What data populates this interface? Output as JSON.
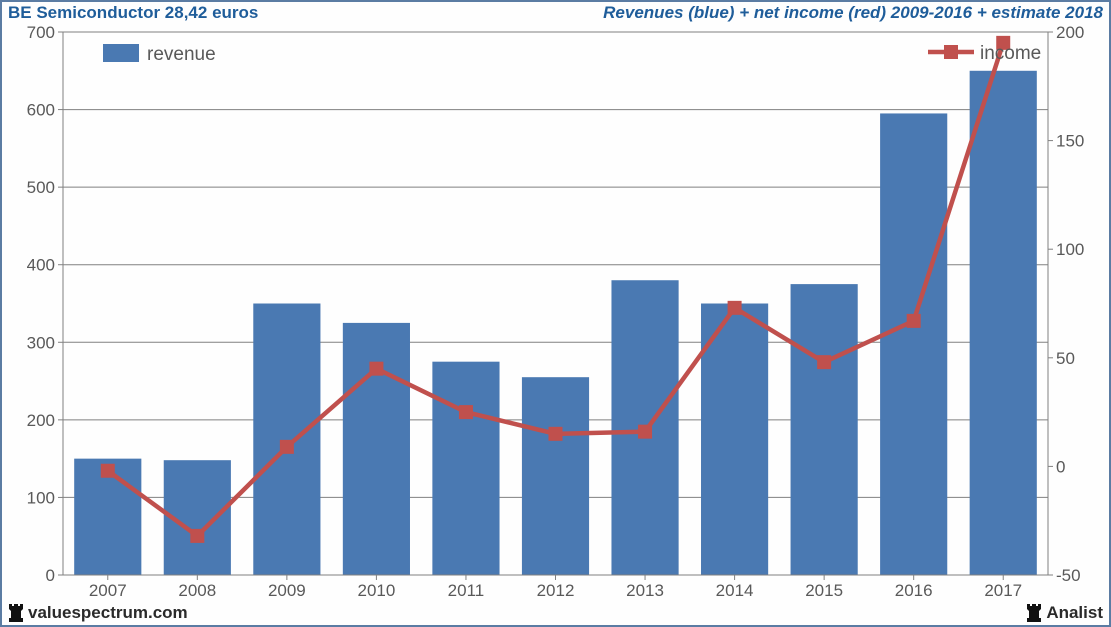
{
  "header": {
    "title_left": "BE Semiconductor 28,42 euros",
    "title_right": "Revenues (blue) + net income (red) 2009-2016 + estimate 2018"
  },
  "footer": {
    "source": "valuespectrum.com",
    "brand": "Analist"
  },
  "chart": {
    "type": "bar+line",
    "categories": [
      "2007",
      "2008",
      "2009",
      "2010",
      "2011",
      "2012",
      "2013",
      "2014",
      "2015",
      "2016",
      "2017"
    ],
    "bar_series": {
      "name": "revenue",
      "values": [
        150,
        148,
        350,
        325,
        275,
        255,
        380,
        350,
        375,
        595,
        650
      ],
      "color": "#4a79b2"
    },
    "line_series": {
      "name": "income",
      "values": [
        -2,
        -32,
        9,
        45,
        25,
        15,
        16,
        73,
        48,
        67,
        195
      ],
      "color": "#c0504d",
      "line_width": 4.5,
      "marker_size": 14,
      "marker_shape": "square"
    },
    "y_left": {
      "min": 0,
      "max": 700,
      "step": 100
    },
    "y_right": {
      "min": -50,
      "max": 200,
      "step": 50
    },
    "background_color": "#fefefe",
    "grid_color": "#808080",
    "axis_label_color": "#595959",
    "axis_label_fontsize": 17,
    "legend_fontsize": 19,
    "bar_width_ratio": 0.75,
    "legend": {
      "revenue_pos": "top-left-inside",
      "income_pos": "top-right-inside"
    }
  },
  "header_colors": {
    "text": "#1f5d9a"
  },
  "border_color": "#5b7ca3"
}
